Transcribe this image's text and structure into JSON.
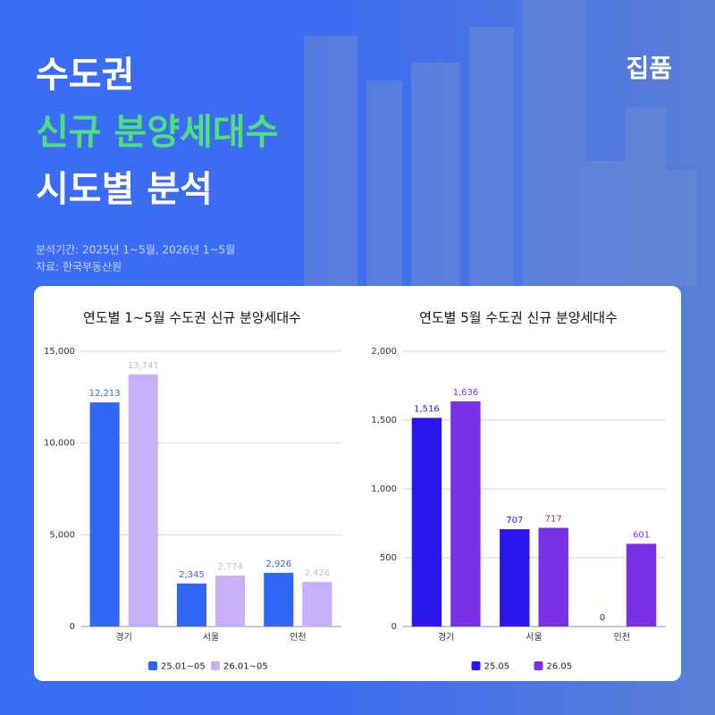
{
  "header": {
    "title_lines": [
      "수도권",
      "신규 분양세대수",
      "시도별 분석"
    ],
    "period": "분석기간: 2025년 1~5월, 2026년 1~5월",
    "source": "자료: 한국부동산원",
    "brand": "집품"
  },
  "chart_data": [
    {
      "type": "bar",
      "title": "연도별 1~5월 수도권 신규 분양세대수",
      "categories": [
        "경기",
        "서울",
        "인천"
      ],
      "series": [
        {
          "name": "25.01~05",
          "color": "#2f66f5",
          "values": [
            12213,
            2345,
            2926
          ],
          "value_labels": [
            "12,213",
            "2,345",
            "2,926"
          ]
        },
        {
          "name": "26.01~05",
          "color": "#c8b0f6",
          "values": [
            13741,
            2774,
            2426
          ],
          "value_labels": [
            "13,741",
            "2,774",
            "2,426"
          ]
        }
      ],
      "ylim": [
        0,
        15000
      ],
      "yticks": [
        0,
        {
          "value": 5000,
          "label": "5,000"
        },
        {
          "value": 10000,
          "label": "10,000"
        },
        {
          "value": 15000,
          "label": "15,000"
        }
      ],
      "grid": true,
      "legend": "bottom"
    },
    {
      "type": "bar",
      "title": "연도별 5월 수도권 신규 분양세대수",
      "categories": [
        "경기",
        "서울",
        "인천"
      ],
      "series": [
        {
          "name": "25.05",
          "color": "#2a17f0",
          "values": [
            1516,
            707,
            0
          ],
          "value_labels": [
            "1,516",
            "707",
            "0"
          ]
        },
        {
          "name": "26.05",
          "color": "#7a30e6",
          "values": [
            1636,
            717,
            601
          ],
          "value_labels": [
            "1,636",
            "717",
            "601"
          ]
        }
      ],
      "ylim": [
        0,
        2000
      ],
      "yticks": [
        0,
        500,
        {
          "value": 1000,
          "label": "1,000"
        },
        {
          "value": 1500,
          "label": "1,500"
        },
        {
          "value": 2000,
          "label": "2,000"
        }
      ],
      "grid": true,
      "legend": "bottom"
    }
  ]
}
